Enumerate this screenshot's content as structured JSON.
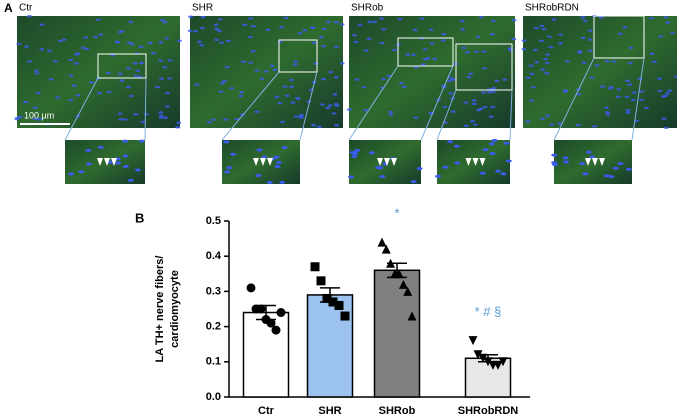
{
  "panel_a": {
    "label": "A",
    "images": [
      "Ctr",
      "SHR",
      "SHRob",
      "SHRobRDN"
    ],
    "scale_bar": "100 µm"
  },
  "chart_data": {
    "type": "bar",
    "label": "B",
    "y_label": [
      "LA TH+ nerve fibers/",
      "cardiomyocyte"
    ],
    "categories": [
      "Ctr",
      "SHR",
      "SHRob",
      "SHRobRDN"
    ],
    "values": [
      0.24,
      0.29,
      0.36,
      0.11
    ],
    "errors": [
      0.02,
      0.02,
      0.02,
      0.01
    ],
    "colors": [
      "#ffffff",
      "#9cc3f0",
      "#808080",
      "#e8e8e8"
    ],
    "markers": [
      "circle",
      "square",
      "triangle",
      "triangle-down"
    ],
    "points": [
      [
        0.31,
        0.25,
        0.25,
        0.22,
        0.21,
        0.19,
        0.24
      ],
      [
        0.37,
        0.33,
        0.28,
        0.27,
        0.26,
        0.23
      ],
      [
        0.44,
        0.42,
        0.38,
        0.35,
        0.35,
        0.32,
        0.3,
        0.23
      ],
      [
        0.16,
        0.12,
        0.11,
        0.1,
        0.09,
        0.09,
        0.1
      ]
    ],
    "annotations": [
      null,
      null,
      "*",
      "*  #  §"
    ],
    "annotation_color": "#5b9bd5",
    "ylim": [
      0,
      0.5
    ],
    "yticks": [
      {
        "value": 0,
        "label": "0.0"
      },
      0.1,
      0.2,
      0.3,
      0.4,
      0.5
    ]
  }
}
